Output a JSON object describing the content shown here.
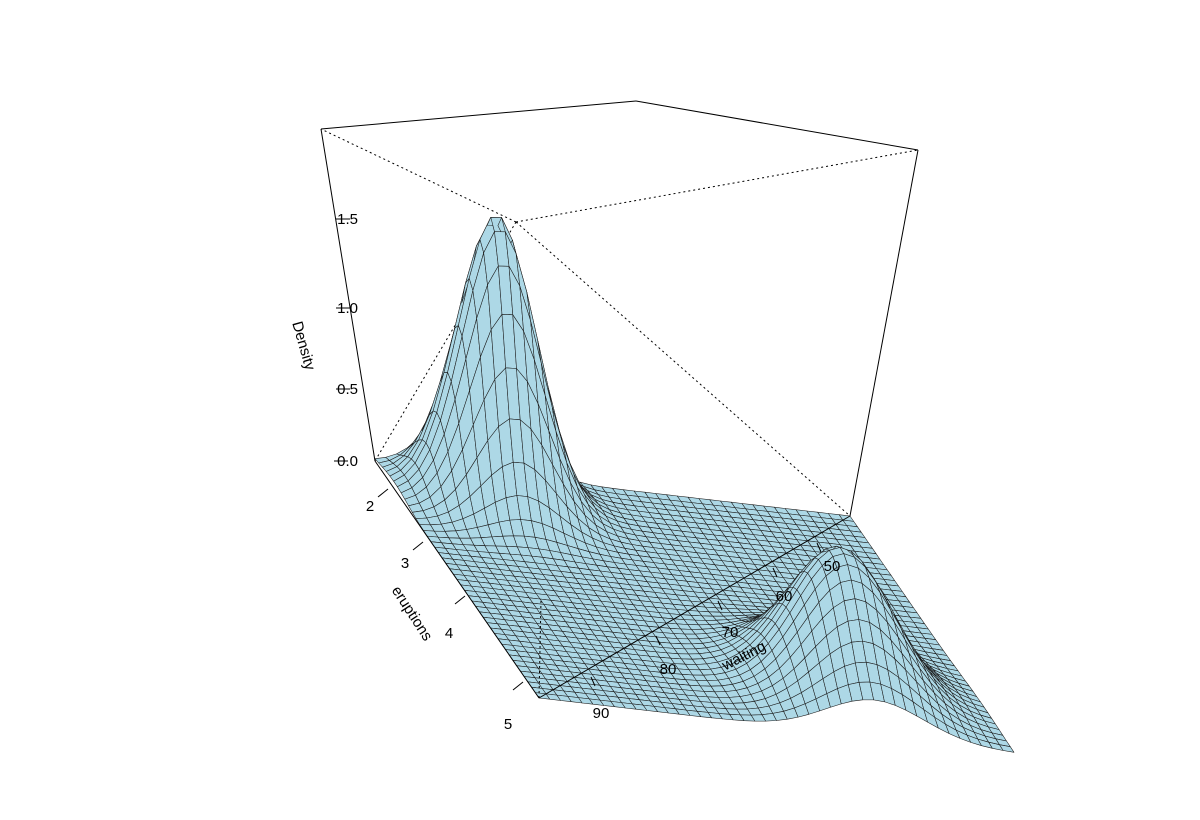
{
  "chart_data": {
    "type": "surface",
    "surface_color": "#add8e6",
    "line_color": "#000000",
    "zlabel": "Density",
    "xlabel": "waiting",
    "ylabel": "eruptions",
    "x_ticks": [
      "50",
      "60",
      "70",
      "80",
      "90"
    ],
    "y_ticks": [
      "2",
      "3",
      "4",
      "5"
    ],
    "z_ticks": [
      "0.0",
      "0.5",
      "1.0",
      "1.5"
    ],
    "xlim": [
      43,
      96
    ],
    "ylim": [
      1.6,
      5.1
    ],
    "zlim": [
      0,
      1.95
    ],
    "grid": false,
    "legend": "none",
    "peaks": [
      {
        "waiting": 54.5,
        "eruptions": 2.0,
        "density": 1.92
      },
      {
        "waiting": 80.5,
        "eruptions": 4.4,
        "density": 0.8
      }
    ]
  }
}
